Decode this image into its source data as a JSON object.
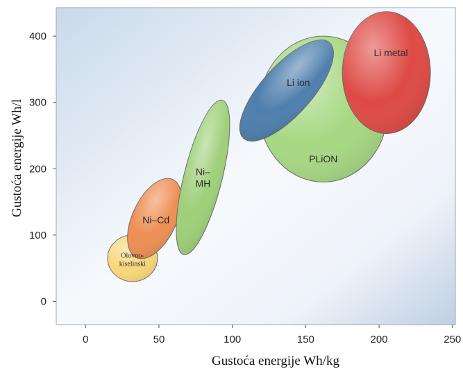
{
  "chart_data": {
    "type": "scatter",
    "title": "",
    "xlabel": "Gustoća energije Wh/kg",
    "ylabel": "Gustoća energije Wh/l",
    "xlim": [
      -20,
      252
    ],
    "ylim": [
      -35,
      443
    ],
    "xticks": [
      "0",
      "50",
      "100",
      "150",
      "200",
      "250"
    ],
    "yticks": [
      "0",
      "100",
      "200",
      "300",
      "400"
    ],
    "grid": false,
    "legend": "none",
    "regions": [
      {
        "name": "Olovno-kiselinski",
        "label_lines": [
          "Olovno-",
          "kiselinski"
        ],
        "cx": 32,
        "cy": 65,
        "rx": 17,
        "ry": 35,
        "angle": 0,
        "color": "#f7d77a"
      },
      {
        "name": "Ni-Cd",
        "label_lines": [
          "Ni–Cd"
        ],
        "cx": 47,
        "cy": 125,
        "rx": 15,
        "ry": 65,
        "angle": 25,
        "color": "#ee8f55"
      },
      {
        "name": "Ni-MH",
        "label_lines": [
          "Ni–",
          "MH"
        ],
        "cx": 80,
        "cy": 187,
        "rx": 13,
        "ry": 120,
        "angle": 14,
        "color": "#9fd079"
      },
      {
        "name": "PLiON",
        "label_lines": [
          "PLiON"
        ],
        "cx": 162,
        "cy": 290,
        "rx": 44,
        "ry": 110,
        "angle": 0,
        "color": "#a7d883"
      },
      {
        "name": "Li ion",
        "label_lines": [
          "Li ion"
        ],
        "cx": 137,
        "cy": 318,
        "rx": 17,
        "ry": 97,
        "angle": 42,
        "color": "#4f7fae"
      },
      {
        "name": "Li metal",
        "label_lines": [
          "Li metal"
        ],
        "cx": 205,
        "cy": 345,
        "rx": 30,
        "ry": 92,
        "angle": 0,
        "color": "#de4a45"
      }
    ]
  }
}
